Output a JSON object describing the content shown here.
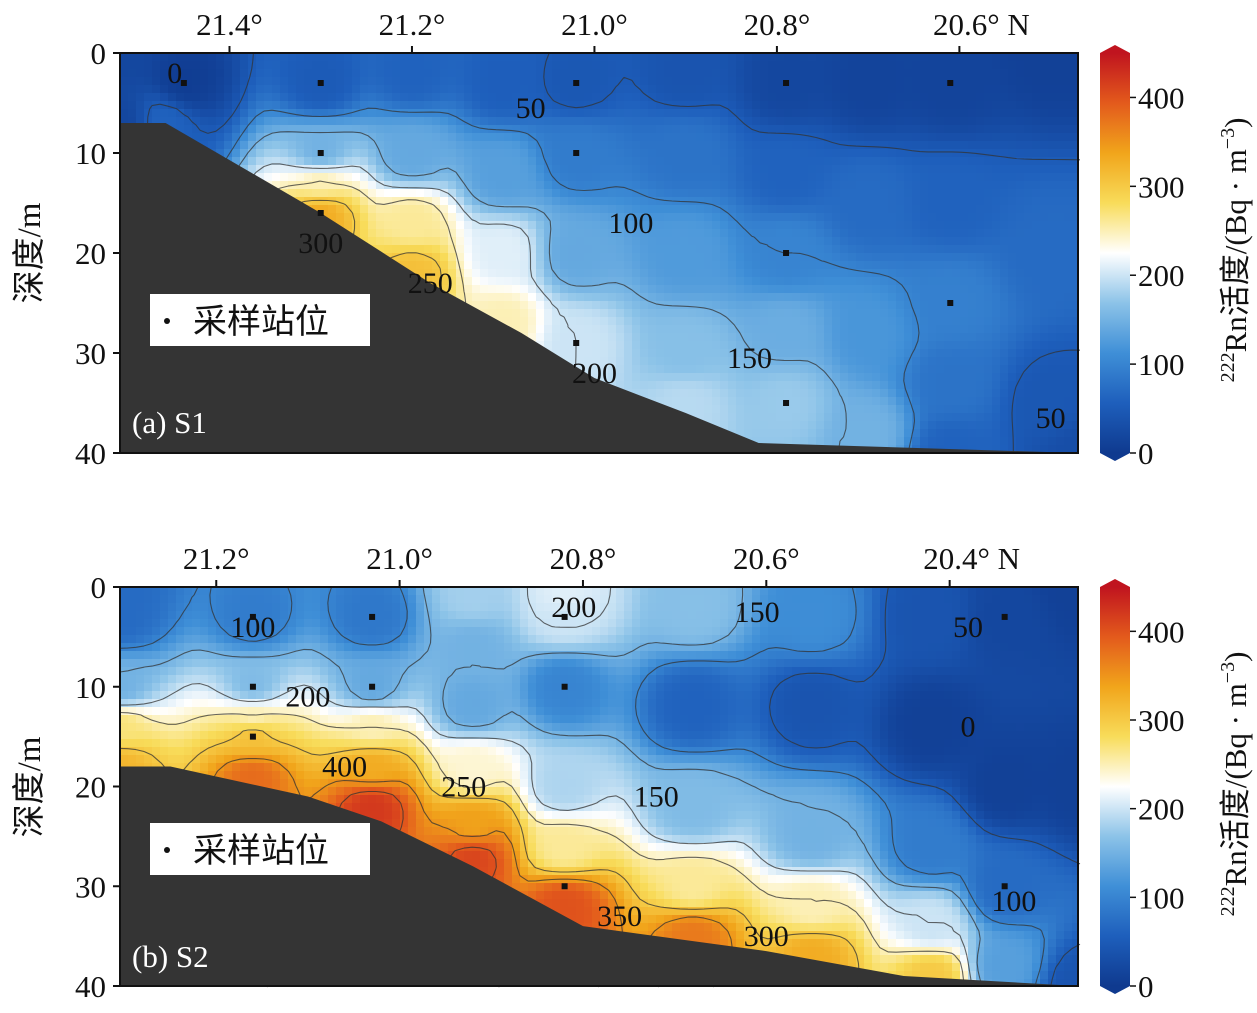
{
  "colors": {
    "seafloor": "#343434",
    "colormap": [
      "#0f3a8f",
      "#1e5fbc",
      "#3f8fd7",
      "#8cc3e8",
      "#ffffff",
      "#f8dc5a",
      "#f1a51b",
      "#e35a1c",
      "#c0141f"
    ],
    "contour_line": "#333333",
    "station_dot": "#111111"
  },
  "chart_data": [
    {
      "type": "heatmap",
      "panel_label": "(a) S1",
      "xlabel": "",
      "ylabel": "深度/m",
      "x_ticks": [
        "21.4°",
        "21.2°",
        "21.0°",
        "20.8°",
        "20.6° N"
      ],
      "x_tick_values": [
        21.4,
        21.2,
        21.0,
        20.8,
        20.6
      ],
      "xlim": [
        21.52,
        20.47
      ],
      "y_ticks": [
        "0",
        "10",
        "20",
        "30",
        "40"
      ],
      "ylim": [
        0,
        40
      ],
      "legend": "采样站位",
      "stations": [
        {
          "lat": 21.45,
          "depths": [
            3
          ]
        },
        {
          "lat": 21.3,
          "depths": [
            3,
            10,
            16
          ]
        },
        {
          "lat": 21.02,
          "depths": [
            3,
            10,
            29
          ]
        },
        {
          "lat": 20.79,
          "depths": [
            3,
            20,
            35
          ]
        },
        {
          "lat": 20.61,
          "depths": [
            3,
            25
          ]
        }
      ],
      "bottom_profile": [
        [
          21.52,
          7
        ],
        [
          21.47,
          7
        ],
        [
          21.3,
          16
        ],
        [
          21.18,
          23
        ],
        [
          21.08,
          28
        ],
        [
          21.0,
          32.5
        ],
        [
          20.9,
          36
        ],
        [
          20.82,
          39
        ],
        [
          20.47,
          41
        ]
      ],
      "contour_labels": [
        {
          "text": "0",
          "lat": 21.46,
          "depth": 2
        },
        {
          "text": "50",
          "lat": 21.07,
          "depth": 5.5
        },
        {
          "text": "100",
          "lat": 20.96,
          "depth": 17
        },
        {
          "text": "150",
          "lat": 20.83,
          "depth": 30.5
        },
        {
          "text": "200",
          "lat": 21.0,
          "depth": 32
        },
        {
          "text": "250",
          "lat": 21.18,
          "depth": 23
        },
        {
          "text": "300",
          "lat": 21.3,
          "depth": 19
        },
        {
          "text": "50",
          "lat": 20.5,
          "depth": 36.5
        }
      ],
      "field_nodes": [
        [
          21.52,
          0,
          20
        ],
        [
          21.52,
          7,
          20
        ],
        [
          21.45,
          3,
          5
        ],
        [
          21.47,
          7,
          60
        ],
        [
          21.3,
          3,
          50
        ],
        [
          21.3,
          10,
          150
        ],
        [
          21.3,
          13,
          250
        ],
        [
          21.3,
          16,
          330
        ],
        [
          21.2,
          2,
          60
        ],
        [
          21.2,
          10,
          140
        ],
        [
          21.2,
          17,
          260
        ],
        [
          21.2,
          22,
          310
        ],
        [
          21.1,
          3,
          55
        ],
        [
          21.1,
          12,
          130
        ],
        [
          21.1,
          20,
          210
        ],
        [
          21.1,
          27,
          250
        ],
        [
          21.02,
          3,
          45
        ],
        [
          21.02,
          10,
          90
        ],
        [
          21.02,
          20,
          140
        ],
        [
          21.02,
          29,
          200
        ],
        [
          20.9,
          2,
          40
        ],
        [
          20.9,
          10,
          80
        ],
        [
          20.9,
          20,
          125
        ],
        [
          20.9,
          30,
          165
        ],
        [
          20.9,
          35,
          190
        ],
        [
          20.79,
          3,
          20
        ],
        [
          20.79,
          12,
          60
        ],
        [
          20.79,
          20,
          100
        ],
        [
          20.79,
          28,
          145
        ],
        [
          20.79,
          35,
          175
        ],
        [
          20.7,
          3,
          15
        ],
        [
          20.7,
          15,
          70
        ],
        [
          20.7,
          28,
          120
        ],
        [
          20.7,
          38,
          150
        ],
        [
          20.61,
          3,
          15
        ],
        [
          20.61,
          15,
          60
        ],
        [
          20.61,
          25,
          95
        ],
        [
          20.61,
          33,
          80
        ],
        [
          20.61,
          40,
          60
        ],
        [
          20.5,
          0,
          10
        ],
        [
          20.5,
          20,
          70
        ],
        [
          20.5,
          35,
          45
        ],
        [
          20.47,
          40,
          30
        ]
      ]
    },
    {
      "type": "heatmap",
      "panel_label": "(b) S2",
      "xlabel": "",
      "ylabel": "深度/m",
      "x_ticks": [
        "21.2°",
        "21.0°",
        "20.8°",
        "20.6°",
        "20.4° N"
      ],
      "x_tick_values": [
        21.2,
        21.0,
        20.8,
        20.6,
        20.4
      ],
      "xlim": [
        21.305,
        20.26
      ],
      "y_ticks": [
        "0",
        "10",
        "20",
        "30",
        "40"
      ],
      "ylim": [
        0,
        40
      ],
      "legend": "采样站位",
      "stations": [
        {
          "lat": 21.16,
          "depths": [
            3,
            10,
            15
          ]
        },
        {
          "lat": 21.03,
          "depths": [
            3,
            10
          ]
        },
        {
          "lat": 20.82,
          "depths": [
            3,
            10,
            30
          ]
        },
        {
          "lat": 20.34,
          "depths": [
            3,
            30
          ]
        }
      ],
      "bottom_profile": [
        [
          21.305,
          18
        ],
        [
          21.25,
          18
        ],
        [
          21.1,
          21
        ],
        [
          21.02,
          23.5
        ],
        [
          20.92,
          28
        ],
        [
          20.8,
          34
        ],
        [
          20.6,
          36.5
        ],
        [
          20.45,
          39
        ],
        [
          20.26,
          40.5
        ]
      ],
      "contour_labels": [
        {
          "text": "100",
          "lat": 21.16,
          "depth": 4
        },
        {
          "text": "200",
          "lat": 21.1,
          "depth": 11
        },
        {
          "text": "200",
          "lat": 20.81,
          "depth": 2
        },
        {
          "text": "150",
          "lat": 20.61,
          "depth": 2.5
        },
        {
          "text": "50",
          "lat": 20.38,
          "depth": 4
        },
        {
          "text": "0",
          "lat": 20.38,
          "depth": 14
        },
        {
          "text": "400",
          "lat": 21.06,
          "depth": 18
        },
        {
          "text": "250",
          "lat": 20.93,
          "depth": 20
        },
        {
          "text": "150",
          "lat": 20.72,
          "depth": 21
        },
        {
          "text": "350",
          "lat": 20.76,
          "depth": 33
        },
        {
          "text": "300",
          "lat": 20.6,
          "depth": 35
        },
        {
          "text": "100",
          "lat": 20.33,
          "depth": 31.5
        }
      ],
      "field_nodes": [
        [
          21.305,
          0,
          70
        ],
        [
          21.305,
          3,
          70
        ],
        [
          21.305,
          10,
          150
        ],
        [
          21.305,
          14,
          270
        ],
        [
          21.305,
          18,
          320
        ],
        [
          21.16,
          3,
          90
        ],
        [
          21.16,
          10,
          160
        ],
        [
          21.16,
          13,
          250
        ],
        [
          21.16,
          15,
          310
        ],
        [
          21.16,
          19,
          380
        ],
        [
          21.03,
          3,
          85
        ],
        [
          21.03,
          10,
          140
        ],
        [
          21.03,
          14,
          250
        ],
        [
          21.03,
          18,
          330
        ],
        [
          21.03,
          22,
          420
        ],
        [
          20.92,
          1,
          180
        ],
        [
          20.92,
          6,
          150
        ],
        [
          20.92,
          12,
          140
        ],
        [
          20.92,
          18,
          240
        ],
        [
          20.92,
          24,
          340
        ],
        [
          20.92,
          27,
          410
        ],
        [
          20.82,
          1,
          210
        ],
        [
          20.82,
          3,
          200
        ],
        [
          20.82,
          10,
          100
        ],
        [
          20.82,
          20,
          185
        ],
        [
          20.82,
          26,
          260
        ],
        [
          20.82,
          32,
          400
        ],
        [
          20.68,
          2,
          165
        ],
        [
          20.68,
          12,
          60
        ],
        [
          20.68,
          22,
          160
        ],
        [
          20.68,
          30,
          260
        ],
        [
          20.68,
          35,
          370
        ],
        [
          20.55,
          3,
          110
        ],
        [
          20.55,
          12,
          40
        ],
        [
          20.55,
          25,
          150
        ],
        [
          20.55,
          32,
          250
        ],
        [
          20.55,
          37,
          330
        ],
        [
          20.42,
          3,
          40
        ],
        [
          20.42,
          14,
          10
        ],
        [
          20.42,
          26,
          90
        ],
        [
          20.42,
          34,
          200
        ],
        [
          20.42,
          39,
          300
        ],
        [
          20.34,
          3,
          20
        ],
        [
          20.34,
          20,
          10
        ],
        [
          20.34,
          30,
          70
        ],
        [
          20.34,
          38,
          130
        ],
        [
          20.26,
          0,
          10
        ],
        [
          20.26,
          20,
          10
        ],
        [
          20.26,
          40,
          40
        ]
      ]
    }
  ],
  "colorbar": {
    "label": "²²²Rn活度/(Bq · m⁻³)",
    "label_superscript": "222",
    "label_main": "Rn活度/(Bq · m",
    "label_exp": "−3",
    "label_tail": ")",
    "ticks": [
      "0",
      "100",
      "200",
      "300",
      "400"
    ],
    "range": [
      0,
      450
    ]
  }
}
